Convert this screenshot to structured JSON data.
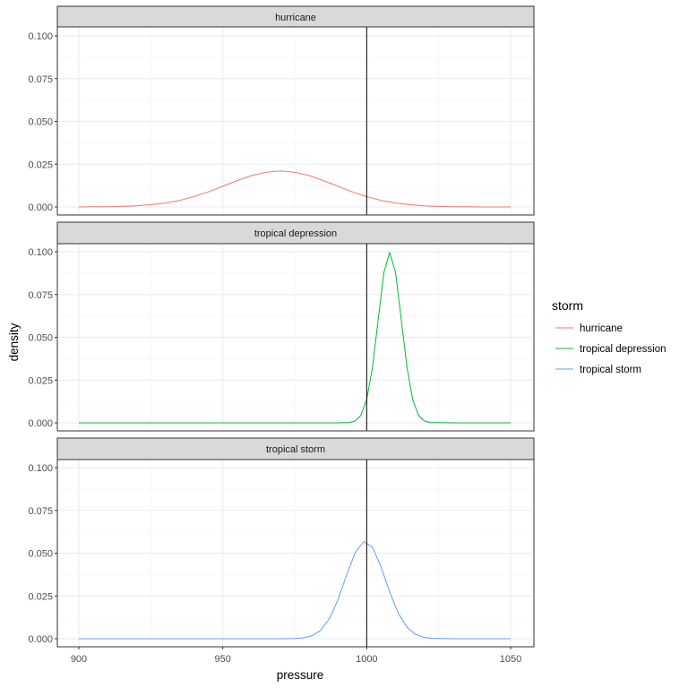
{
  "chart_data": {
    "type": "line",
    "facet_by": "storm",
    "xlabel": "pressure",
    "ylabel": "density",
    "xlim": [
      900,
      1050
    ],
    "ylim": [
      0,
      0.1
    ],
    "x_ticks": [
      "900",
      "950",
      "1000",
      "1050"
    ],
    "y_ticks": [
      "0.000",
      "0.025",
      "0.050",
      "0.075",
      "0.100"
    ],
    "grid": true,
    "vline": 1000,
    "legend": {
      "title": "storm",
      "position": "right"
    },
    "series": [
      {
        "name": "hurricane",
        "color": "#F8766D",
        "x": [
          900,
          905,
          910,
          915,
          920,
          925,
          930,
          935,
          940,
          945,
          950,
          955,
          960,
          965,
          970,
          975,
          980,
          985,
          990,
          995,
          1000,
          1005,
          1010,
          1015,
          1020,
          1025,
          1030,
          1035,
          1040,
          1045,
          1050
        ],
        "y": [
          0.0,
          0.0001,
          0.0001,
          0.0003,
          0.0007,
          0.0013,
          0.0023,
          0.0038,
          0.006,
          0.0088,
          0.0121,
          0.0154,
          0.0183,
          0.0203,
          0.021,
          0.0203,
          0.0183,
          0.0154,
          0.0121,
          0.0088,
          0.006,
          0.0038,
          0.0023,
          0.0013,
          0.0007,
          0.0003,
          0.0001,
          0.0001,
          0.0,
          0.0,
          0.0
        ]
      },
      {
        "name": "tropical depression",
        "color": "#00BA38",
        "x": [
          900,
          990,
          994,
          996,
          998,
          1000,
          1002,
          1004,
          1006,
          1008,
          1010,
          1012,
          1014,
          1016,
          1018,
          1020,
          1022,
          1030,
          1050
        ],
        "y": [
          0,
          0,
          0.0002,
          0.0011,
          0.0044,
          0.0135,
          0.0324,
          0.0605,
          0.088,
          0.0997,
          0.088,
          0.0605,
          0.0324,
          0.0135,
          0.0044,
          0.0011,
          0.0002,
          0,
          0
        ]
      },
      {
        "name": "tropical storm",
        "color": "#619CFF",
        "x": [
          900,
          970,
          975,
          978,
          981,
          984,
          987,
          990,
          993,
          996,
          999,
          1002,
          1005,
          1008,
          1011,
          1014,
          1017,
          1020,
          1023,
          1030,
          1050
        ],
        "y": [
          0,
          0,
          0.0001,
          0.0005,
          0.0017,
          0.0049,
          0.0116,
          0.0227,
          0.037,
          0.0503,
          0.0568,
          0.0535,
          0.0419,
          0.0273,
          0.0148,
          0.0067,
          0.0025,
          0.0008,
          0.0002,
          0,
          0
        ]
      }
    ]
  }
}
